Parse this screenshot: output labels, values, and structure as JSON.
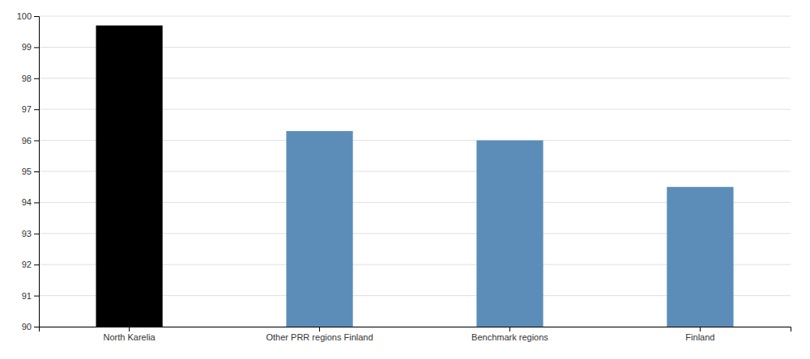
{
  "chart_data": {
    "type": "bar",
    "categories": [
      "North Karelia",
      "Other PRR regions Finland",
      "Benchmark regions",
      "Finland"
    ],
    "values": [
      99.7,
      96.3,
      96.0,
      94.5
    ],
    "colors": [
      "#000000",
      "#5B8DB8",
      "#5B8DB8",
      "#5B8DB8"
    ],
    "ylim": [
      90,
      100
    ],
    "yticks": [
      90,
      91,
      92,
      93,
      94,
      95,
      96,
      97,
      98,
      99,
      100
    ],
    "grid": true
  }
}
